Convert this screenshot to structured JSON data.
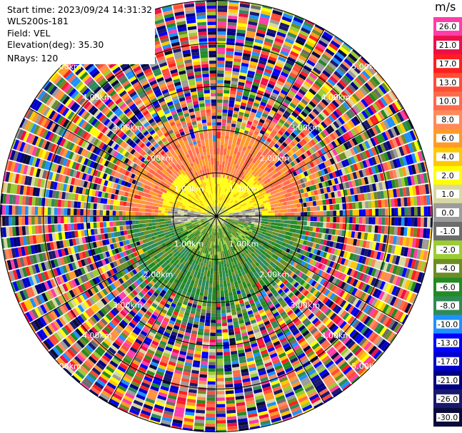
{
  "header": {
    "start_time": "Start time: 2023/09/24 14:31:32",
    "instrument": "WLS200s-181",
    "field": "Field: VEL",
    "elevation": "Elevation(deg): 35.30",
    "nrays": "NRays: 120"
  },
  "range_labels": [
    "1.00km",
    "2.00km",
    "3.00km",
    "4.00km",
    "5.00km"
  ],
  "colorbar": {
    "unit": "m/s",
    "ticks": [
      "26.0",
      "21.0",
      "17.0",
      "13.0",
      "10.0",
      "8.0",
      "6.0",
      "4.0",
      "2.0",
      "1.0",
      "0.0",
      "-1.0",
      "-2.0",
      "-4.0",
      "-6.0",
      "-8.0",
      "-10.0",
      "-13.0",
      "-17.0",
      "-21.0",
      "-26.0",
      "-30.0"
    ],
    "colors": [
      "#ff3da8",
      "#ee0f4a",
      "#ff1f1f",
      "#ff4d36",
      "#ff6a4a",
      "#ff8a5a",
      "#ff9a28",
      "#ffc800",
      "#ffff00",
      "#d8d8a0",
      "#9c9c9c",
      "#6c6c6c",
      "#9acd32",
      "#6b8e23",
      "#228b22",
      "#2e8b57",
      "#1e90ff",
      "#0000ff",
      "#0000cd",
      "#000080",
      "#191970",
      "#0b0b3a"
    ]
  },
  "chart_data": {
    "type": "heatmap",
    "projection": "PPI",
    "field": "VEL",
    "unit": "m/s",
    "nrays": 120,
    "max_range_km": 5.0,
    "range_rings_km": [
      1,
      2,
      3,
      4,
      5
    ],
    "color_scale": [
      -30,
      26
    ]
  }
}
